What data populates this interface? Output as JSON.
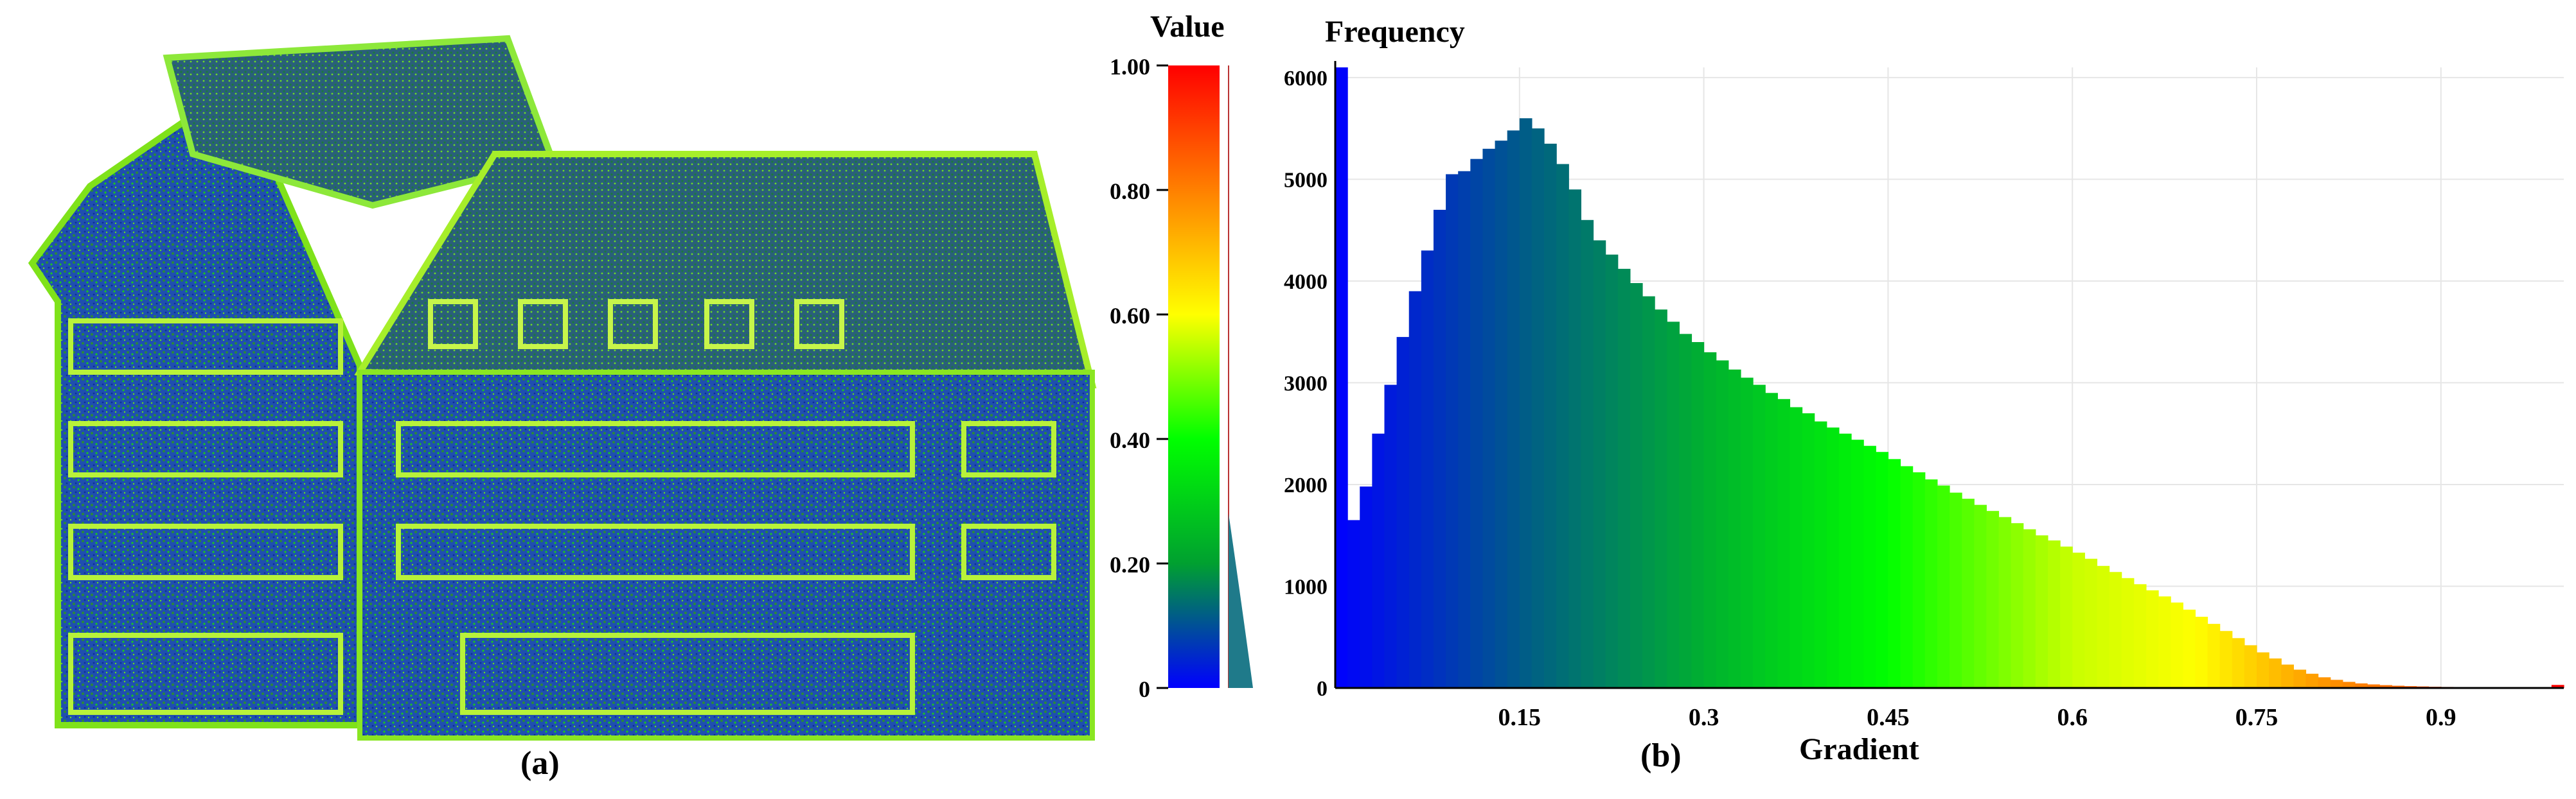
{
  "figure": {
    "caption_a": "(a)",
    "caption_b": "(b)"
  },
  "colorbar": {
    "title": "Value",
    "ticks": [
      "1.00",
      "0.80",
      "0.60",
      "0.40",
      "0.20",
      "0"
    ],
    "tick_values": [
      1.0,
      0.8,
      0.6,
      0.4,
      0.2,
      0.0
    ]
  },
  "chart_data": {
    "type": "bar",
    "title": "",
    "ylabel": "Frequency",
    "xlabel": "Gradient",
    "xlim": [
      0.0,
      1.0
    ],
    "ylim": [
      0,
      6100
    ],
    "x_ticks": [
      "0.15",
      "0.3",
      "0.45",
      "0.6",
      "0.75",
      "0.9"
    ],
    "x_tick_values": [
      0.15,
      0.3,
      0.45,
      0.6,
      0.75,
      0.9
    ],
    "y_ticks": [
      "0",
      "1000",
      "2000",
      "3000",
      "4000",
      "5000",
      "6000"
    ],
    "y_tick_values": [
      0,
      1000,
      2000,
      3000,
      4000,
      5000,
      6000
    ],
    "grid": true,
    "bins": 100,
    "values": [
      6100,
      1650,
      1980,
      2500,
      2980,
      3450,
      3900,
      4300,
      4700,
      5050,
      5080,
      5200,
      5300,
      5380,
      5480,
      5600,
      5500,
      5350,
      5150,
      4900,
      4600,
      4400,
      4260,
      4120,
      3980,
      3850,
      3720,
      3600,
      3480,
      3400,
      3300,
      3220,
      3130,
      3050,
      2980,
      2900,
      2840,
      2760,
      2700,
      2620,
      2560,
      2500,
      2440,
      2380,
      2320,
      2250,
      2180,
      2120,
      2050,
      1990,
      1920,
      1860,
      1800,
      1740,
      1680,
      1620,
      1560,
      1500,
      1450,
      1390,
      1330,
      1270,
      1200,
      1140,
      1080,
      1020,
      960,
      900,
      840,
      770,
      700,
      630,
      560,
      490,
      420,
      350,
      290,
      230,
      180,
      140,
      105,
      80,
      60,
      45,
      35,
      28,
      22,
      18,
      15,
      12,
      10,
      9,
      8,
      7,
      6,
      5,
      4,
      4,
      3,
      30
    ],
    "colormap_stops": [
      "#0000ff",
      "#00a030",
      "#00ff00",
      "#ffff00",
      "#ff8000",
      "#ff0000"
    ]
  }
}
